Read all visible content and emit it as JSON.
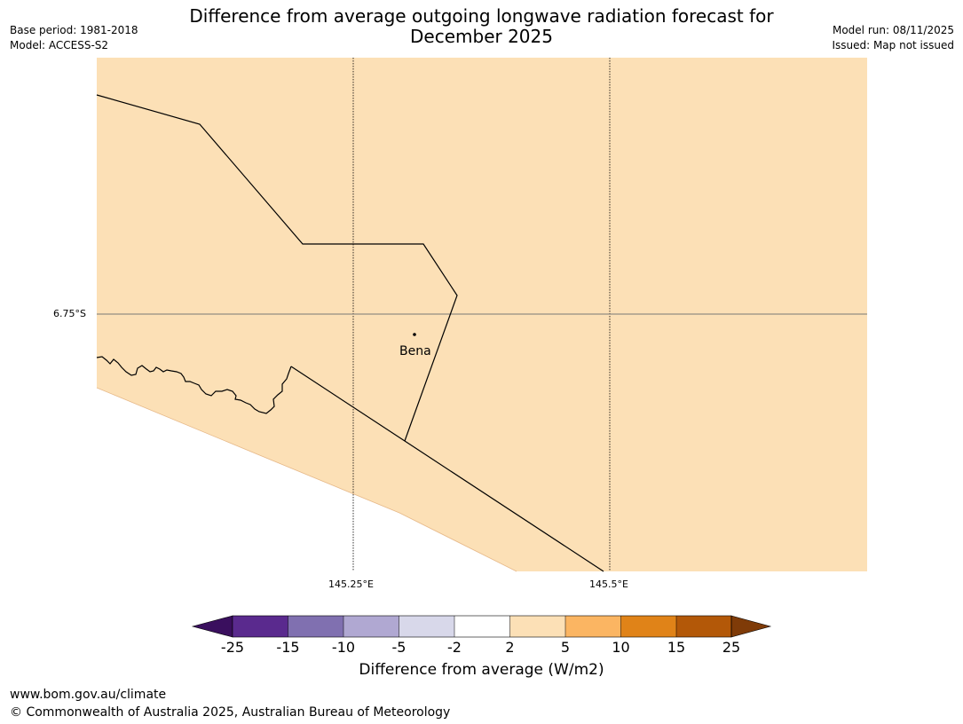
{
  "header": {
    "title_line1": "Difference from average outgoing longwave radiation forecast for",
    "title_line2": "December 2025",
    "base_period": "Base period: 1981-2018",
    "model": "Model: ACCESS-S2",
    "model_run": "Model run: 08/11/2025",
    "issued": "Issued: Map not issued"
  },
  "map": {
    "lat_label": "6.75°S",
    "lon_labels": [
      "145.25°E",
      "145.5°E"
    ],
    "place": "Bena",
    "fill_category": "2 to 5",
    "colors": {
      "land_fill": "#fce0b6",
      "outside": "#ffffff",
      "boundary": "#000000"
    }
  },
  "colorbar": {
    "ticks": [
      "-25",
      "-15",
      "-10",
      "-5",
      "-2",
      "2",
      "5",
      "10",
      "15",
      "25"
    ],
    "colors": [
      "#3a0f5e",
      "#5a2a8e",
      "#8070b0",
      "#b0a8d2",
      "#d8d8ea",
      "#ffffff",
      "#fce0b6",
      "#fbb562",
      "#e08318",
      "#b35808",
      "#7f3b08"
    ],
    "label": "Difference from average (W/m2)"
  },
  "footer": {
    "url": "www.bom.gov.au/climate",
    "copyright": "© Commonwealth of Australia 2025, Australian Bureau of Meteorology"
  }
}
